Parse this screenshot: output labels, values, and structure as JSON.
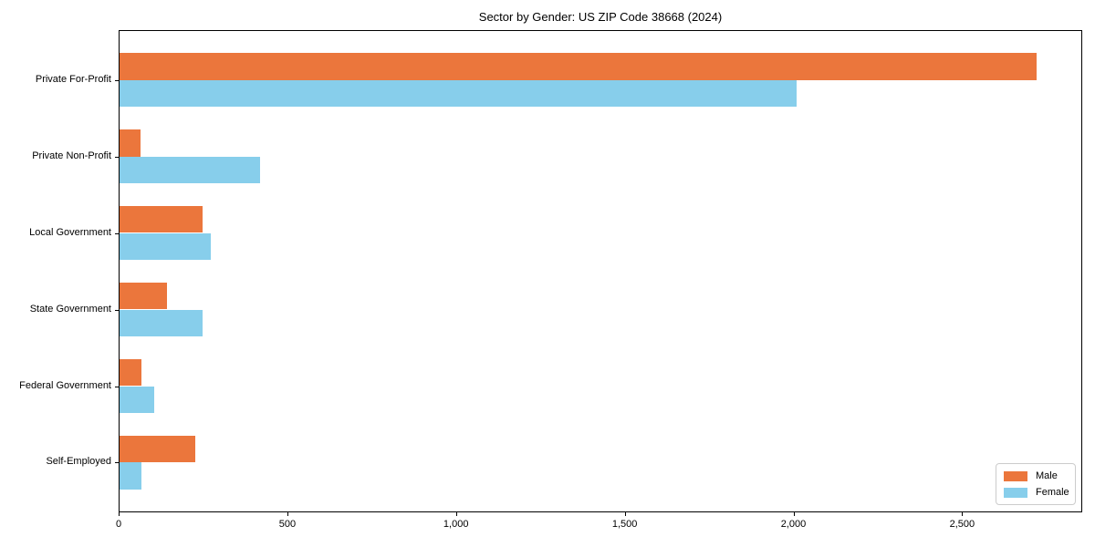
{
  "title": "Sector by Gender: US ZIP Code 38668 (2024)",
  "chart_data": {
    "type": "bar",
    "orientation": "horizontal",
    "title": "Sector by Gender: US ZIP Code 38668 (2024)",
    "xlabel": "",
    "ylabel": "",
    "categories": [
      "Private For-Profit",
      "Private Non-Profit",
      "Local Government",
      "State Government",
      "Federal Government",
      "Self-Employed"
    ],
    "series": [
      {
        "name": "Male",
        "color": "#eb763c",
        "values": [
          2720,
          65,
          250,
          143,
          68,
          227
        ]
      },
      {
        "name": "Female",
        "color": "#87ceeb",
        "values": [
          2010,
          420,
          272,
          250,
          106,
          68
        ]
      }
    ],
    "xlim": [
      0,
      2856
    ],
    "x_ticks": [
      0,
      500,
      1000,
      1500,
      2000,
      2500
    ],
    "x_tick_labels": [
      "0",
      "500",
      "1,000",
      "1,500",
      "2,000",
      "2,500"
    ],
    "grid": false,
    "legend_position": "lower right",
    "bar_height_units": 0.35,
    "colors": {
      "male": "#eb763c",
      "female": "#87ceeb",
      "spine": "#000000",
      "background": "#ffffff",
      "legend_border": "#cccccc"
    }
  }
}
